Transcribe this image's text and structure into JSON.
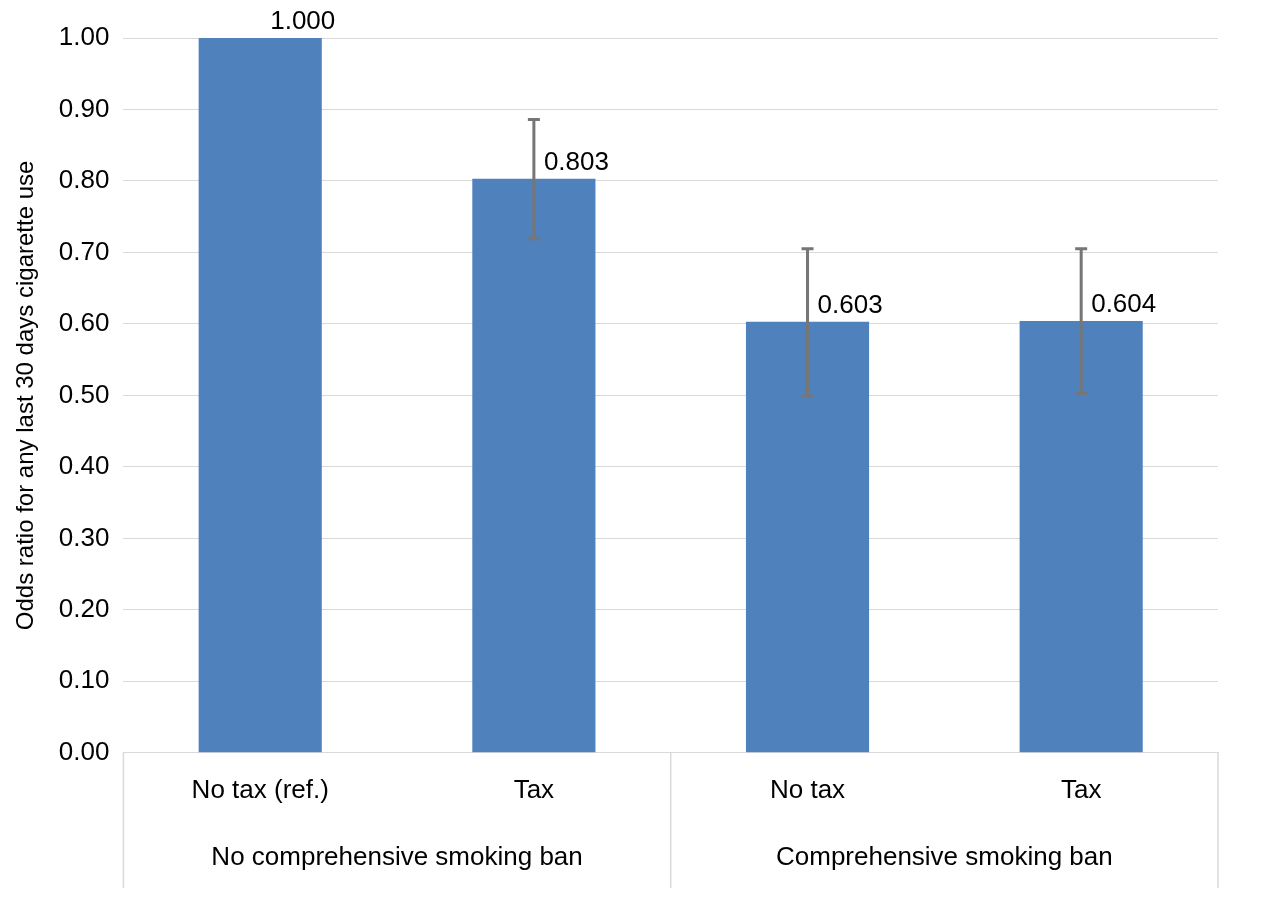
{
  "chart_data": {
    "type": "bar",
    "ylabel": "Odds ratio for any last 30 days cigarette use",
    "categories": [
      "No tax (ref.)",
      "Tax",
      "No tax",
      "Tax"
    ],
    "values": [
      1.0,
      0.803,
      0.603,
      0.604
    ],
    "value_labels": [
      "1.000",
      "0.803",
      "0.603",
      "0.604"
    ],
    "errors": [
      null,
      [
        0.719,
        0.886
      ],
      [
        0.499,
        0.705
      ],
      [
        0.503,
        0.705
      ]
    ],
    "color": "#4f81bd",
    "annotations": [
      "No comprehensive smoking ban",
      "Comprehensive smoking ban"
    ],
    "ylim": [
      0,
      1
    ],
    "yticks": [
      {
        "value": 0,
        "label": "0.00"
      },
      {
        "value": 0.1,
        "label": "0.10"
      },
      {
        "value": 0.2,
        "label": "0.20"
      },
      {
        "value": 0.3,
        "label": "0.30"
      },
      {
        "value": 0.4,
        "label": "0.40"
      },
      {
        "value": 0.5,
        "label": "0.50"
      },
      {
        "value": 0.6,
        "label": "0.60"
      },
      {
        "value": 0.7,
        "label": "0.70"
      },
      {
        "value": 0.8,
        "label": "0.80"
      },
      {
        "value": 0.9,
        "label": "0.90"
      },
      {
        "value": 1,
        "label": "1.00"
      }
    ],
    "grid": "y"
  }
}
